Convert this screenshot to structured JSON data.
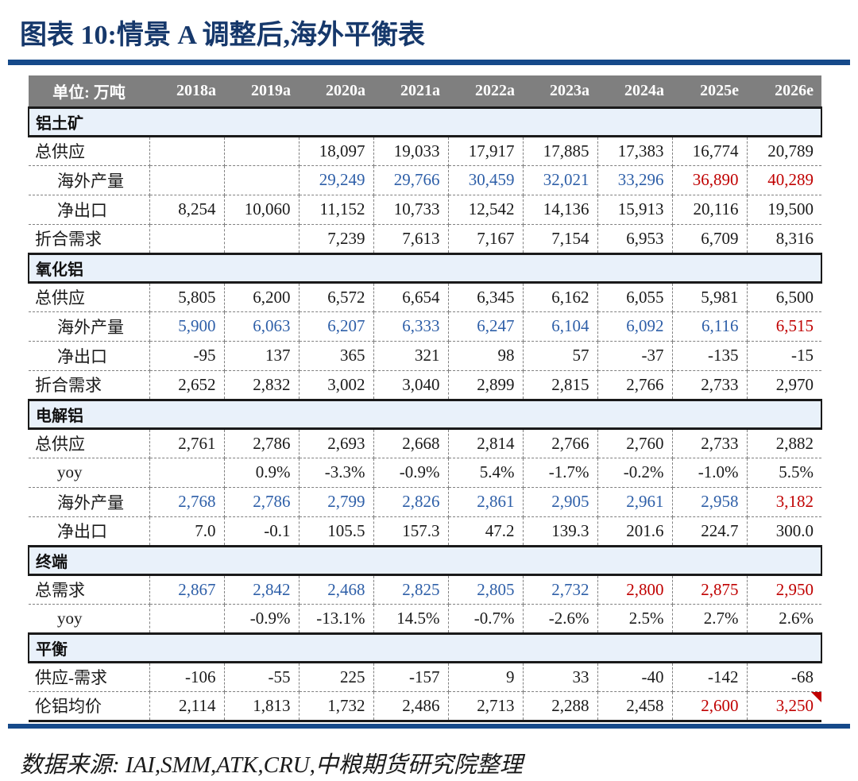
{
  "title": "图表 10:情景 A 调整后,海外平衡表",
  "footer": "数据来源: IAI,SMM,ATK,CRU,中粮期货研究院整理",
  "colors": {
    "title_navy": "#16386B",
    "rule_blue": "#164A8A",
    "header_gray": "#7F7F7F",
    "section_band_blue": "#E9F1FA",
    "value_black": "#1A1A1A",
    "value_blue": "#2E5FA8",
    "value_red": "#C00000"
  },
  "table": {
    "unit_label": "单位: 万吨",
    "years": [
      "2018a",
      "2019a",
      "2020a",
      "2021a",
      "2022a",
      "2023a",
      "2024a",
      "2025e",
      "2026e"
    ],
    "sections": [
      {
        "name": "铝土矿",
        "rows": [
          {
            "label": "总供应",
            "indent": false,
            "values": [
              "",
              "",
              "18,097",
              "19,033",
              "17,917",
              "17,885",
              "17,383",
              "16,774",
              "20,789"
            ],
            "styles": [
              "k",
              "k",
              "k",
              "k",
              "k",
              "k",
              "k",
              "k",
              "k"
            ]
          },
          {
            "label": "海外产量",
            "indent": true,
            "values": [
              "",
              "",
              "29,249",
              "29,766",
              "30,459",
              "32,021",
              "33,296",
              "36,890",
              "40,289"
            ],
            "styles": [
              "k",
              "k",
              "b",
              "b",
              "b",
              "b",
              "b",
              "r",
              "r"
            ]
          },
          {
            "label": "净出口",
            "indent": true,
            "values": [
              "8,254",
              "10,060",
              "11,152",
              "10,733",
              "12,542",
              "14,136",
              "15,913",
              "20,116",
              "19,500"
            ],
            "styles": [
              "k",
              "k",
              "k",
              "k",
              "k",
              "k",
              "k",
              "k",
              "k"
            ]
          },
          {
            "label": "折合需求",
            "indent": false,
            "values": [
              "",
              "",
              "7,239",
              "7,613",
              "7,167",
              "7,154",
              "6,953",
              "6,709",
              "8,316"
            ],
            "styles": [
              "k",
              "k",
              "k",
              "k",
              "k",
              "k",
              "k",
              "k",
              "k"
            ]
          }
        ]
      },
      {
        "name": "氧化铝",
        "rows": [
          {
            "label": "总供应",
            "indent": false,
            "values": [
              "5,805",
              "6,200",
              "6,572",
              "6,654",
              "6,345",
              "6,162",
              "6,055",
              "5,981",
              "6,500"
            ],
            "styles": [
              "k",
              "k",
              "k",
              "k",
              "k",
              "k",
              "k",
              "k",
              "k"
            ]
          },
          {
            "label": "海外产量",
            "indent": true,
            "values": [
              "5,900",
              "6,063",
              "6,207",
              "6,333",
              "6,247",
              "6,104",
              "6,092",
              "6,116",
              "6,515"
            ],
            "styles": [
              "b",
              "b",
              "b",
              "b",
              "b",
              "b",
              "b",
              "b",
              "r"
            ]
          },
          {
            "label": "净出口",
            "indent": true,
            "values": [
              "-95",
              "137",
              "365",
              "321",
              "98",
              "57",
              "-37",
              "-135",
              "-15"
            ],
            "styles": [
              "k",
              "k",
              "k",
              "k",
              "k",
              "k",
              "k",
              "k",
              "k"
            ]
          },
          {
            "label": "折合需求",
            "indent": false,
            "values": [
              "2,652",
              "2,832",
              "3,002",
              "3,040",
              "2,899",
              "2,815",
              "2,766",
              "2,733",
              "2,970"
            ],
            "styles": [
              "k",
              "k",
              "k",
              "k",
              "k",
              "k",
              "k",
              "k",
              "k"
            ]
          }
        ]
      },
      {
        "name": "电解铝",
        "rows": [
          {
            "label": "总供应",
            "indent": false,
            "values": [
              "2,761",
              "2,786",
              "2,693",
              "2,668",
              "2,814",
              "2,766",
              "2,760",
              "2,733",
              "2,882"
            ],
            "styles": [
              "k",
              "k",
              "k",
              "k",
              "k",
              "k",
              "k",
              "k",
              "k"
            ]
          },
          {
            "label": "yoy",
            "indent": true,
            "values": [
              "",
              "0.9%",
              "-3.3%",
              "-0.9%",
              "5.4%",
              "-1.7%",
              "-0.2%",
              "-1.0%",
              "5.5%"
            ],
            "styles": [
              "k",
              "k",
              "k",
              "k",
              "k",
              "k",
              "k",
              "k",
              "k"
            ]
          },
          {
            "label": "海外产量",
            "indent": true,
            "values": [
              "2,768",
              "2,786",
              "2,799",
              "2,826",
              "2,861",
              "2,905",
              "2,961",
              "2,958",
              "3,182"
            ],
            "styles": [
              "b",
              "b",
              "b",
              "b",
              "b",
              "b",
              "b",
              "b",
              "r"
            ]
          },
          {
            "label": "净出口",
            "indent": true,
            "values": [
              "7.0",
              "-0.1",
              "105.5",
              "157.3",
              "47.2",
              "139.3",
              "201.6",
              "224.7",
              "300.0"
            ],
            "styles": [
              "k",
              "k",
              "k",
              "k",
              "k",
              "k",
              "k",
              "k",
              "k"
            ]
          }
        ]
      },
      {
        "name": "终端",
        "rows": [
          {
            "label": "总需求",
            "indent": false,
            "values": [
              "2,867",
              "2,842",
              "2,468",
              "2,825",
              "2,805",
              "2,732",
              "2,800",
              "2,875",
              "2,950"
            ],
            "styles": [
              "b",
              "b",
              "b",
              "b",
              "b",
              "b",
              "r",
              "r",
              "r"
            ]
          },
          {
            "label": "yoy",
            "indent": true,
            "values": [
              "",
              "-0.9%",
              "-13.1%",
              "14.5%",
              "-0.7%",
              "-2.6%",
              "2.5%",
              "2.7%",
              "2.6%"
            ],
            "styles": [
              "k",
              "k",
              "k",
              "k",
              "k",
              "k",
              "k",
              "k",
              "k"
            ]
          }
        ]
      },
      {
        "name": "平衡",
        "rows": [
          {
            "label": "供应-需求",
            "indent": false,
            "values": [
              "-106",
              "-55",
              "225",
              "-157",
              "9",
              "33",
              "-40",
              "-142",
              "-68"
            ],
            "styles": [
              "k",
              "k",
              "k",
              "k",
              "k",
              "k",
              "k",
              "k",
              "k"
            ]
          },
          {
            "label": "伦铝均价",
            "indent": false,
            "values": [
              "2,114",
              "1,813",
              "1,732",
              "2,486",
              "2,713",
              "2,288",
              "2,458",
              "2,600",
              "3,250"
            ],
            "styles": [
              "k",
              "k",
              "k",
              "k",
              "k",
              "k",
              "k",
              "r",
              "r"
            ],
            "marker_col": 8
          }
        ]
      }
    ]
  }
}
